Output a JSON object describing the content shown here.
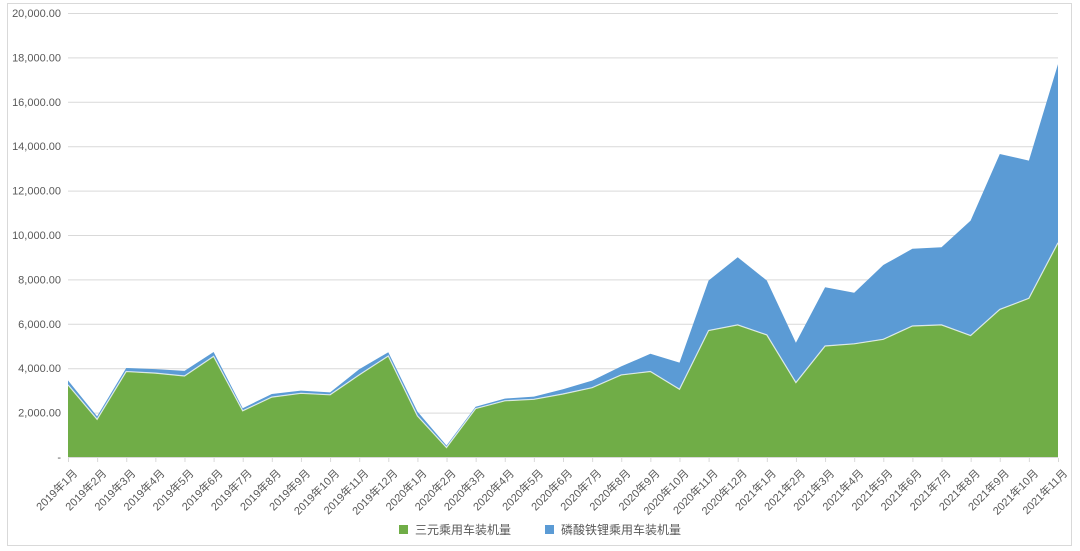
{
  "chart_data": {
    "type": "area",
    "stacked": true,
    "title": "",
    "xlabel": "",
    "ylabel": "",
    "ylim": [
      0,
      20000
    ],
    "ytick_step": 2000,
    "ytick_labels_bottom_to_top": [
      "-",
      "2,000.00",
      "4,000.00",
      "6,000.00",
      "8,000.00",
      "10,000.00",
      "12,000.00",
      "14,000.00",
      "16,000.00",
      "18,000.00",
      "20,000.00"
    ],
    "grid": "horizontal-only",
    "legend_position": "bottom-center",
    "background_color": "#FFFFFF",
    "gridline_color": "#D9D9D9",
    "axis_text_color": "#595959",
    "categories": [
      "2019年1月",
      "2019年2月",
      "2019年3月",
      "2019年4月",
      "2019年5月",
      "2019年6月",
      "2019年7月",
      "2019年8月",
      "2019年9月",
      "2019年10月",
      "2019年11月",
      "2019年12月",
      "2020年1月",
      "2020年2月",
      "2020年3月",
      "2020年4月",
      "2020年5月",
      "2020年6月",
      "2020年7月",
      "2020年8月",
      "2020年9月",
      "2020年10月",
      "2020年11月",
      "2020年12月",
      "2021年1月",
      "2021年2月",
      "2021年3月",
      "2021年4月",
      "2021年5月",
      "2021年6月",
      "2021年7月",
      "2021年8月",
      "2021年9月",
      "2021年10月",
      "2021年11月"
    ],
    "series": [
      {
        "name": "三元乘用车装机量",
        "color": "#70AD47",
        "values": [
          3250,
          1700,
          3850,
          3780,
          3650,
          4530,
          2080,
          2700,
          2870,
          2800,
          3700,
          4550,
          1850,
          430,
          2180,
          2530,
          2600,
          2840,
          3120,
          3700,
          3850,
          3050,
          5700,
          5950,
          5500,
          3350,
          5000,
          5100,
          5300,
          5900,
          5950,
          5470,
          6650,
          7150,
          9650
        ]
      },
      {
        "name": "磷酸铁锂乘用车装机量",
        "color": "#5B9BD5",
        "values": [
          200,
          130,
          160,
          180,
          230,
          200,
          120,
          140,
          120,
          110,
          250,
          170,
          200,
          90,
          80,
          100,
          120,
          210,
          320,
          380,
          800,
          1200,
          2250,
          3050,
          2450,
          1800,
          2650,
          2300,
          3350,
          3480,
          3500,
          5180,
          7000,
          6200,
          8050
        ]
      }
    ]
  }
}
